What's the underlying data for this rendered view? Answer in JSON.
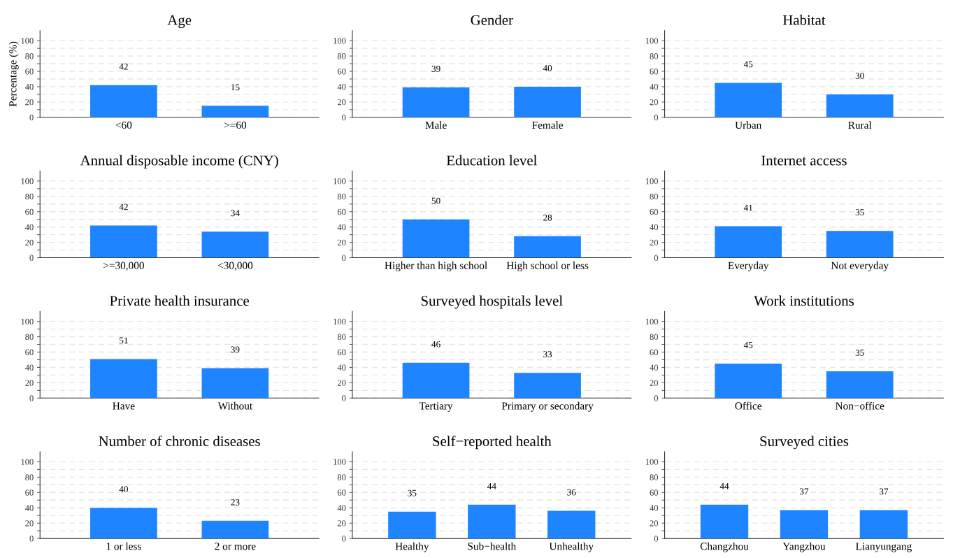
{
  "chart_data": [
    {
      "type": "bar",
      "title": "Age",
      "ylabel": "Percentage (%)",
      "categories": [
        "<60",
        ">=60"
      ],
      "values": [
        42,
        15
      ],
      "color": "#1e84ff",
      "ylim": [
        0,
        113
      ],
      "yticks": [
        0,
        {
          "value": 10,
          "label": null
        },
        20,
        {
          "value": 30,
          "label": null
        },
        40,
        {
          "value": 50,
          "label": null
        },
        60,
        {
          "value": 70,
          "label": null
        },
        80,
        {
          "value": 90,
          "label": null
        },
        100
      ],
      "grid": "y",
      "data_labels": true
    },
    {
      "type": "bar",
      "title": "Gender",
      "categories": [
        "Male",
        "Female"
      ],
      "values": [
        39,
        40
      ],
      "color": "#1e84ff",
      "ylim": [
        0,
        113
      ],
      "yticks": [
        0,
        {
          "value": 10,
          "label": null
        },
        20,
        {
          "value": 30,
          "label": null
        },
        40,
        {
          "value": 50,
          "label": null
        },
        60,
        {
          "value": 70,
          "label": null
        },
        80,
        {
          "value": 90,
          "label": null
        },
        100
      ],
      "grid": "y",
      "data_labels": true
    },
    {
      "type": "bar",
      "title": "Habitat",
      "categories": [
        "Urban",
        "Rural"
      ],
      "values": [
        45,
        30
      ],
      "color": "#1e84ff",
      "ylim": [
        0,
        113
      ],
      "yticks": [
        0,
        {
          "value": 10,
          "label": null
        },
        20,
        {
          "value": 30,
          "label": null
        },
        40,
        {
          "value": 50,
          "label": null
        },
        60,
        {
          "value": 70,
          "label": null
        },
        80,
        {
          "value": 90,
          "label": null
        },
        100
      ],
      "grid": "y",
      "data_labels": true
    },
    {
      "type": "bar",
      "title": "Annual disposable income (CNY)",
      "categories": [
        ">=30,000",
        "<30,000"
      ],
      "values": [
        42,
        34
      ],
      "color": "#1e84ff",
      "ylim": [
        0,
        113
      ],
      "yticks": [
        0,
        {
          "value": 10,
          "label": null
        },
        20,
        {
          "value": 30,
          "label": null
        },
        40,
        {
          "value": 50,
          "label": null
        },
        60,
        {
          "value": 70,
          "label": null
        },
        80,
        {
          "value": 90,
          "label": null
        },
        100
      ],
      "grid": "y",
      "data_labels": true
    },
    {
      "type": "bar",
      "title": "Education level",
      "categories": [
        "Higher than high school",
        "High school or less"
      ],
      "values": [
        50,
        28
      ],
      "color": "#1e84ff",
      "ylim": [
        0,
        113
      ],
      "yticks": [
        0,
        {
          "value": 10,
          "label": null
        },
        20,
        {
          "value": 30,
          "label": null
        },
        40,
        {
          "value": 50,
          "label": null
        },
        60,
        {
          "value": 70,
          "label": null
        },
        80,
        {
          "value": 90,
          "label": null
        },
        100
      ],
      "grid": "y",
      "data_labels": true
    },
    {
      "type": "bar",
      "title": "Internet access",
      "categories": [
        "Everyday",
        "Not everyday"
      ],
      "values": [
        41,
        35
      ],
      "color": "#1e84ff",
      "ylim": [
        0,
        113
      ],
      "yticks": [
        0,
        {
          "value": 10,
          "label": null
        },
        20,
        {
          "value": 30,
          "label": null
        },
        40,
        {
          "value": 50,
          "label": null
        },
        60,
        {
          "value": 70,
          "label": null
        },
        80,
        {
          "value": 90,
          "label": null
        },
        100
      ],
      "grid": "y",
      "data_labels": true
    },
    {
      "type": "bar",
      "title": "Private health insurance",
      "categories": [
        "Have",
        "Without"
      ],
      "values": [
        51,
        39
      ],
      "color": "#1e84ff",
      "ylim": [
        0,
        113
      ],
      "yticks": [
        0,
        {
          "value": 10,
          "label": null
        },
        20,
        {
          "value": 30,
          "label": null
        },
        40,
        {
          "value": 50,
          "label": null
        },
        60,
        {
          "value": 70,
          "label": null
        },
        80,
        {
          "value": 90,
          "label": null
        },
        100
      ],
      "grid": "y",
      "data_labels": true
    },
    {
      "type": "bar",
      "title": "Surveyed hospitals level",
      "categories": [
        "Tertiary",
        "Primary or secondary"
      ],
      "values": [
        46,
        33
      ],
      "color": "#1e84ff",
      "ylim": [
        0,
        113
      ],
      "yticks": [
        0,
        {
          "value": 10,
          "label": null
        },
        20,
        {
          "value": 30,
          "label": null
        },
        40,
        {
          "value": 50,
          "label": null
        },
        60,
        {
          "value": 70,
          "label": null
        },
        80,
        {
          "value": 90,
          "label": null
        },
        100
      ],
      "grid": "y",
      "data_labels": true
    },
    {
      "type": "bar",
      "title": "Work institutions",
      "categories": [
        "Office",
        "Non−office"
      ],
      "values": [
        45,
        35
      ],
      "color": "#1e84ff",
      "ylim": [
        0,
        113
      ],
      "yticks": [
        0,
        {
          "value": 10,
          "label": null
        },
        20,
        {
          "value": 30,
          "label": null
        },
        40,
        {
          "value": 50,
          "label": null
        },
        60,
        {
          "value": 70,
          "label": null
        },
        80,
        {
          "value": 90,
          "label": null
        },
        100
      ],
      "grid": "y",
      "data_labels": true
    },
    {
      "type": "bar",
      "title": "Number of chronic diseases",
      "categories": [
        "1 or less",
        "2 or more"
      ],
      "values": [
        40,
        23
      ],
      "color": "#1e84ff",
      "ylim": [
        0,
        113
      ],
      "yticks": [
        0,
        {
          "value": 10,
          "label": null
        },
        20,
        {
          "value": 30,
          "label": null
        },
        40,
        {
          "value": 50,
          "label": null
        },
        60,
        {
          "value": 70,
          "label": null
        },
        80,
        {
          "value": 90,
          "label": null
        },
        100
      ],
      "grid": "y",
      "data_labels": true
    },
    {
      "type": "bar",
      "title": "Self−reported health",
      "categories": [
        "Healthy",
        "Sub−health",
        "Unhealthy"
      ],
      "values": [
        35,
        44,
        36
      ],
      "color": "#1e84ff",
      "ylim": [
        0,
        113
      ],
      "yticks": [
        0,
        {
          "value": 10,
          "label": null
        },
        20,
        {
          "value": 30,
          "label": null
        },
        40,
        {
          "value": 50,
          "label": null
        },
        60,
        {
          "value": 70,
          "label": null
        },
        80,
        {
          "value": 90,
          "label": null
        },
        100
      ],
      "grid": "y",
      "data_labels": true
    },
    {
      "type": "bar",
      "title": "Surveyed cities",
      "categories": [
        "Changzhou",
        "Yangzhou",
        "Lianyungang"
      ],
      "values": [
        44,
        37,
        37
      ],
      "color": "#1e84ff",
      "ylim": [
        0,
        113
      ],
      "yticks": [
        0,
        {
          "value": 10,
          "label": null
        },
        20,
        {
          "value": 30,
          "label": null
        },
        40,
        {
          "value": 50,
          "label": null
        },
        60,
        {
          "value": 70,
          "label": null
        },
        80,
        {
          "value": 90,
          "label": null
        },
        100
      ],
      "grid": "y",
      "data_labels": true
    }
  ]
}
